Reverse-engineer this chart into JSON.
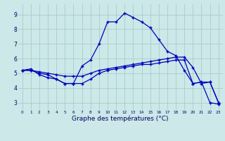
{
  "title": "Graphe des températures (°C)",
  "bg_color": "#cce8e8",
  "grid_color": "#aacccc",
  "line_color": "#0000bb",
  "marker": "+",
  "xlim": [
    -0.5,
    23.5
  ],
  "ylim": [
    2.5,
    9.7
  ],
  "xticks": [
    0,
    1,
    2,
    3,
    4,
    5,
    6,
    7,
    8,
    9,
    10,
    11,
    12,
    13,
    14,
    15,
    16,
    17,
    18,
    19,
    20,
    21,
    22,
    23
  ],
  "yticks": [
    3,
    4,
    5,
    6,
    7,
    8,
    9
  ],
  "line1_x": [
    0,
    1,
    2,
    3,
    4,
    5,
    6,
    7,
    8,
    9,
    10,
    11,
    12,
    13,
    14,
    15,
    16,
    17,
    18,
    19,
    20,
    21,
    22,
    23
  ],
  "line1_y": [
    5.2,
    5.3,
    4.9,
    4.7,
    4.6,
    4.3,
    4.3,
    5.5,
    5.9,
    7.0,
    8.5,
    8.5,
    9.1,
    8.8,
    8.5,
    8.1,
    7.3,
    6.5,
    6.2,
    5.2,
    4.3,
    4.4,
    3.0,
    2.9
  ],
  "line2_x": [
    0,
    1,
    2,
    3,
    4,
    5,
    6,
    7,
    8,
    9,
    10,
    11,
    12,
    13,
    14,
    15,
    16,
    17,
    18,
    19,
    20,
    21,
    22,
    23
  ],
  "line2_y": [
    5.2,
    5.2,
    5.1,
    5.0,
    4.9,
    4.8,
    4.8,
    4.8,
    5.0,
    5.2,
    5.3,
    5.4,
    5.5,
    5.6,
    5.7,
    5.8,
    5.9,
    6.0,
    6.1,
    6.1,
    5.4,
    4.3,
    4.4,
    3.0
  ],
  "line3_x": [
    0,
    1,
    2,
    3,
    4,
    5,
    6,
    7,
    8,
    9,
    10,
    11,
    12,
    13,
    14,
    15,
    16,
    17,
    18,
    19,
    20,
    21,
    22,
    23
  ],
  "line3_y": [
    5.2,
    5.2,
    5.0,
    4.9,
    4.6,
    4.3,
    4.3,
    4.3,
    4.6,
    5.0,
    5.2,
    5.3,
    5.4,
    5.5,
    5.6,
    5.6,
    5.7,
    5.8,
    5.9,
    5.9,
    4.3,
    4.4,
    4.4,
    3.0
  ],
  "xlabel_fontsize": 6.5,
  "ylabel_fontsize": 5.5,
  "tick_fontsize_x": 4.2,
  "tick_fontsize_y": 5.5,
  "linewidth": 0.9,
  "markersize": 3.5
}
